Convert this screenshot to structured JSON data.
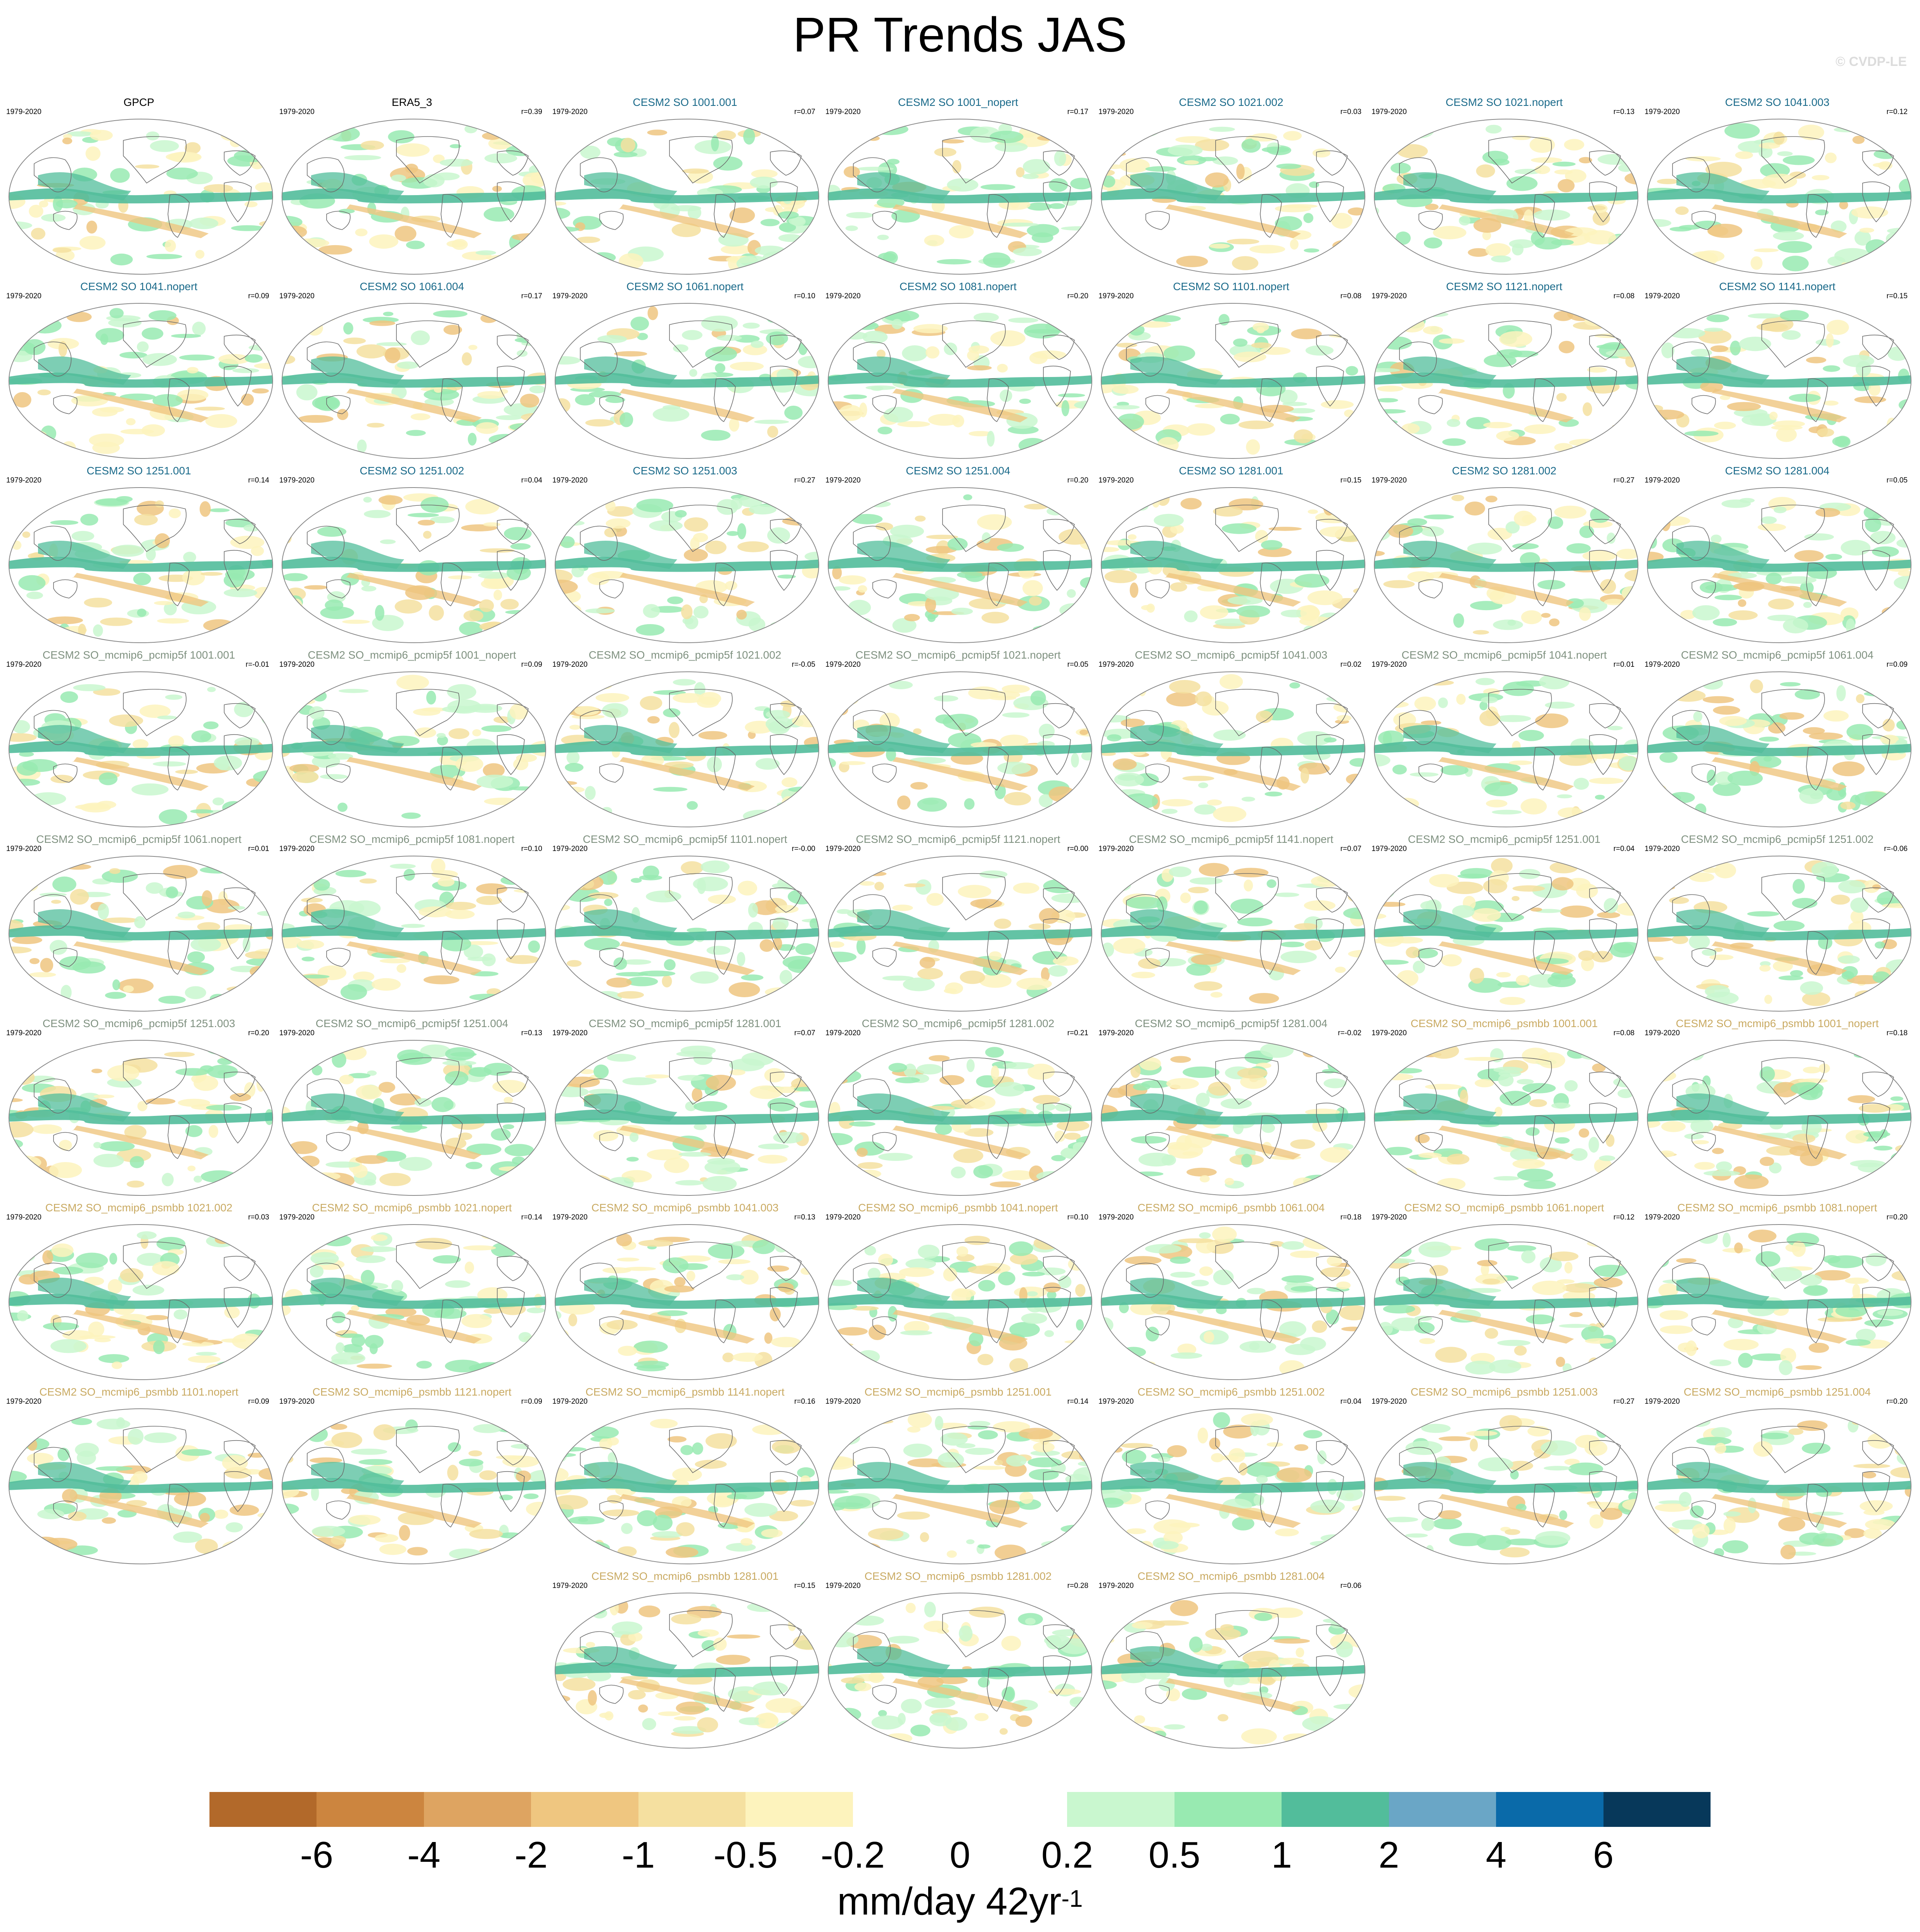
{
  "title": "PR Trends JAS",
  "watermark": "© CVDP-LE",
  "colors": {
    "obs_title": "#000000",
    "cesm2_so": "#1a6a8a",
    "pcmip5f": "#7f9180",
    "psmbb": "#c9aa62",
    "coast": "#6b6b6b"
  },
  "panels": [
    {
      "title": "GPCP",
      "period": "1979-2020",
      "r": "",
      "group": "obs"
    },
    {
      "title": "ERA5_3",
      "period": "1979-2020",
      "r": "r=0.39",
      "group": "obs"
    },
    {
      "title": "CESM2 SO 1001.001",
      "period": "1979-2020",
      "r": "r=0.07",
      "group": "cesm2_so"
    },
    {
      "title": "CESM2 SO 1001_nopert",
      "period": "1979-2020",
      "r": "r=0.17",
      "group": "cesm2_so"
    },
    {
      "title": "CESM2 SO 1021.002",
      "period": "1979-2020",
      "r": "r=0.03",
      "group": "cesm2_so"
    },
    {
      "title": "CESM2 SO 1021.nopert",
      "period": "1979-2020",
      "r": "r=0.13",
      "group": "cesm2_so"
    },
    {
      "title": "CESM2 SO 1041.003",
      "period": "1979-2020",
      "r": "r=0.12",
      "group": "cesm2_so"
    },
    {
      "title": "CESM2 SO 1041.nopert",
      "period": "1979-2020",
      "r": "r=0.09",
      "group": "cesm2_so"
    },
    {
      "title": "CESM2 SO 1061.004",
      "period": "1979-2020",
      "r": "r=0.17",
      "group": "cesm2_so"
    },
    {
      "title": "CESM2 SO 1061.nopert",
      "period": "1979-2020",
      "r": "r=0.10",
      "group": "cesm2_so"
    },
    {
      "title": "CESM2 SO 1081.nopert",
      "period": "1979-2020",
      "r": "r=0.20",
      "group": "cesm2_so"
    },
    {
      "title": "CESM2 SO 1101.nopert",
      "period": "1979-2020",
      "r": "r=0.08",
      "group": "cesm2_so"
    },
    {
      "title": "CESM2 SO 1121.nopert",
      "period": "1979-2020",
      "r": "r=0.08",
      "group": "cesm2_so"
    },
    {
      "title": "CESM2 SO 1141.nopert",
      "period": "1979-2020",
      "r": "r=0.15",
      "group": "cesm2_so"
    },
    {
      "title": "CESM2 SO 1251.001",
      "period": "1979-2020",
      "r": "r=0.14",
      "group": "cesm2_so"
    },
    {
      "title": "CESM2 SO 1251.002",
      "period": "1979-2020",
      "r": "r=0.04",
      "group": "cesm2_so"
    },
    {
      "title": "CESM2 SO 1251.003",
      "period": "1979-2020",
      "r": "r=0.27",
      "group": "cesm2_so"
    },
    {
      "title": "CESM2 SO 1251.004",
      "period": "1979-2020",
      "r": "r=0.20",
      "group": "cesm2_so"
    },
    {
      "title": "CESM2 SO 1281.001",
      "period": "1979-2020",
      "r": "r=0.15",
      "group": "cesm2_so"
    },
    {
      "title": "CESM2 SO 1281.002",
      "period": "1979-2020",
      "r": "r=0.27",
      "group": "cesm2_so"
    },
    {
      "title": "CESM2 SO 1281.004",
      "period": "1979-2020",
      "r": "r=0.05",
      "group": "cesm2_so"
    },
    {
      "title": "CESM2 SO_mcmip6_pcmip5f 1001.001",
      "period": "1979-2020",
      "r": "r=-0.01",
      "group": "pcmip5f"
    },
    {
      "title": "CESM2 SO_mcmip6_pcmip5f 1001_nopert",
      "period": "1979-2020",
      "r": "r=0.09",
      "group": "pcmip5f"
    },
    {
      "title": "CESM2 SO_mcmip6_pcmip5f 1021.002",
      "period": "1979-2020",
      "r": "r=-0.05",
      "group": "pcmip5f"
    },
    {
      "title": "CESM2 SO_mcmip6_pcmip5f 1021.nopert",
      "period": "1979-2020",
      "r": "r=0.05",
      "group": "pcmip5f"
    },
    {
      "title": "CESM2 SO_mcmip6_pcmip5f 1041.003",
      "period": "1979-2020",
      "r": "r=0.02",
      "group": "pcmip5f"
    },
    {
      "title": "CESM2 SO_mcmip6_pcmip5f 1041.nopert",
      "period": "1979-2020",
      "r": "r=0.01",
      "group": "pcmip5f"
    },
    {
      "title": "CESM2 SO_mcmip6_pcmip5f 1061.004",
      "period": "1979-2020",
      "r": "r=0.09",
      "group": "pcmip5f"
    },
    {
      "title": "CESM2 SO_mcmip6_pcmip5f 1061.nopert",
      "period": "1979-2020",
      "r": "r=0.01",
      "group": "pcmip5f"
    },
    {
      "title": "CESM2 SO_mcmip6_pcmip5f 1081.nopert",
      "period": "1979-2020",
      "r": "r=0.10",
      "group": "pcmip5f"
    },
    {
      "title": "CESM2 SO_mcmip6_pcmip5f 1101.nopert",
      "period": "1979-2020",
      "r": "r=-0.00",
      "group": "pcmip5f"
    },
    {
      "title": "CESM2 SO_mcmip6_pcmip5f 1121.nopert",
      "period": "1979-2020",
      "r": "r=0.00",
      "group": "pcmip5f"
    },
    {
      "title": "CESM2 SO_mcmip6_pcmip5f 1141.nopert",
      "period": "1979-2020",
      "r": "r=0.07",
      "group": "pcmip5f"
    },
    {
      "title": "CESM2 SO_mcmip6_pcmip5f 1251.001",
      "period": "1979-2020",
      "r": "r=0.04",
      "group": "pcmip5f"
    },
    {
      "title": "CESM2 SO_mcmip6_pcmip5f 1251.002",
      "period": "1979-2020",
      "r": "r=-0.06",
      "group": "pcmip5f"
    },
    {
      "title": "CESM2 SO_mcmip6_pcmip5f 1251.003",
      "period": "1979-2020",
      "r": "r=0.20",
      "group": "pcmip5f"
    },
    {
      "title": "CESM2 SO_mcmip6_pcmip5f 1251.004",
      "period": "1979-2020",
      "r": "r=0.13",
      "group": "pcmip5f"
    },
    {
      "title": "CESM2 SO_mcmip6_pcmip5f 1281.001",
      "period": "1979-2020",
      "r": "r=0.07",
      "group": "pcmip5f"
    },
    {
      "title": "CESM2 SO_mcmip6_pcmip5f 1281.002",
      "period": "1979-2020",
      "r": "r=0.21",
      "group": "pcmip5f"
    },
    {
      "title": "CESM2 SO_mcmip6_pcmip5f 1281.004",
      "period": "1979-2020",
      "r": "r=-0.02",
      "group": "pcmip5f"
    },
    {
      "title": "CESM2 SO_mcmip6_psmbb 1001.001",
      "period": "1979-2020",
      "r": "r=0.08",
      "group": "psmbb"
    },
    {
      "title": "CESM2 SO_mcmip6_psmbb 1001_nopert",
      "period": "1979-2020",
      "r": "r=0.18",
      "group": "psmbb"
    },
    {
      "title": "CESM2 SO_mcmip6_psmbb 1021.002",
      "period": "1979-2020",
      "r": "r=0.03",
      "group": "psmbb"
    },
    {
      "title": "CESM2 SO_mcmip6_psmbb 1021.nopert",
      "period": "1979-2020",
      "r": "r=0.14",
      "group": "psmbb"
    },
    {
      "title": "CESM2 SO_mcmip6_psmbb 1041.003",
      "period": "1979-2020",
      "r": "r=0.13",
      "group": "psmbb"
    },
    {
      "title": "CESM2 SO_mcmip6_psmbb 1041.nopert",
      "period": "1979-2020",
      "r": "r=0.10",
      "group": "psmbb"
    },
    {
      "title": "CESM2 SO_mcmip6_psmbb 1061.004",
      "period": "1979-2020",
      "r": "r=0.18",
      "group": "psmbb"
    },
    {
      "title": "CESM2 SO_mcmip6_psmbb 1061.nopert",
      "period": "1979-2020",
      "r": "r=0.12",
      "group": "psmbb"
    },
    {
      "title": "CESM2 SO_mcmip6_psmbb 1081.nopert",
      "period": "1979-2020",
      "r": "r=0.20",
      "group": "psmbb"
    },
    {
      "title": "CESM2 SO_mcmip6_psmbb 1101.nopert",
      "period": "1979-2020",
      "r": "r=0.09",
      "group": "psmbb"
    },
    {
      "title": "CESM2 SO_mcmip6_psmbb 1121.nopert",
      "period": "1979-2020",
      "r": "r=0.09",
      "group": "psmbb"
    },
    {
      "title": "CESM2 SO_mcmip6_psmbb 1141.nopert",
      "period": "1979-2020",
      "r": "r=0.16",
      "group": "psmbb"
    },
    {
      "title": "CESM2 SO_mcmip6_psmbb 1251.001",
      "period": "1979-2020",
      "r": "r=0.14",
      "group": "psmbb"
    },
    {
      "title": "CESM2 SO_mcmip6_psmbb 1251.002",
      "period": "1979-2020",
      "r": "r=0.04",
      "group": "psmbb"
    },
    {
      "title": "CESM2 SO_mcmip6_psmbb 1251.003",
      "period": "1979-2020",
      "r": "r=0.27",
      "group": "psmbb"
    },
    {
      "title": "CESM2 SO_mcmip6_psmbb 1251.004",
      "period": "1979-2020",
      "r": "r=0.20",
      "group": "psmbb"
    },
    {
      "title": "CESM2 SO_mcmip6_psmbb 1281.001",
      "period": "1979-2020",
      "r": "r=0.15",
      "group": "psmbb"
    },
    {
      "title": "CESM2 SO_mcmip6_psmbb 1281.002",
      "period": "1979-2020",
      "r": "r=0.28",
      "group": "psmbb"
    },
    {
      "title": "CESM2 SO_mcmip6_psmbb 1281.004",
      "period": "1979-2020",
      "r": "r=0.06",
      "group": "psmbb"
    }
  ],
  "colorbar": {
    "colors": [
      "#b2692a",
      "#cc853f",
      "#dea461",
      "#efc680",
      "#f5e0a0",
      "#fdf3bd",
      "#ffffff",
      "#ffffff",
      "#c9f7cf",
      "#98eab1",
      "#52bd9b",
      "#6aa6c6",
      "#0a6aa9",
      "#07385a"
    ],
    "ticks": [
      "-6",
      "-4",
      "-2",
      "-1",
      "-0.5",
      "-0.2",
      "0",
      "0.2",
      "0.5",
      "1",
      "2",
      "4",
      "6"
    ],
    "units_main": "mm/day 42yr",
    "units_exp": "-1"
  }
}
